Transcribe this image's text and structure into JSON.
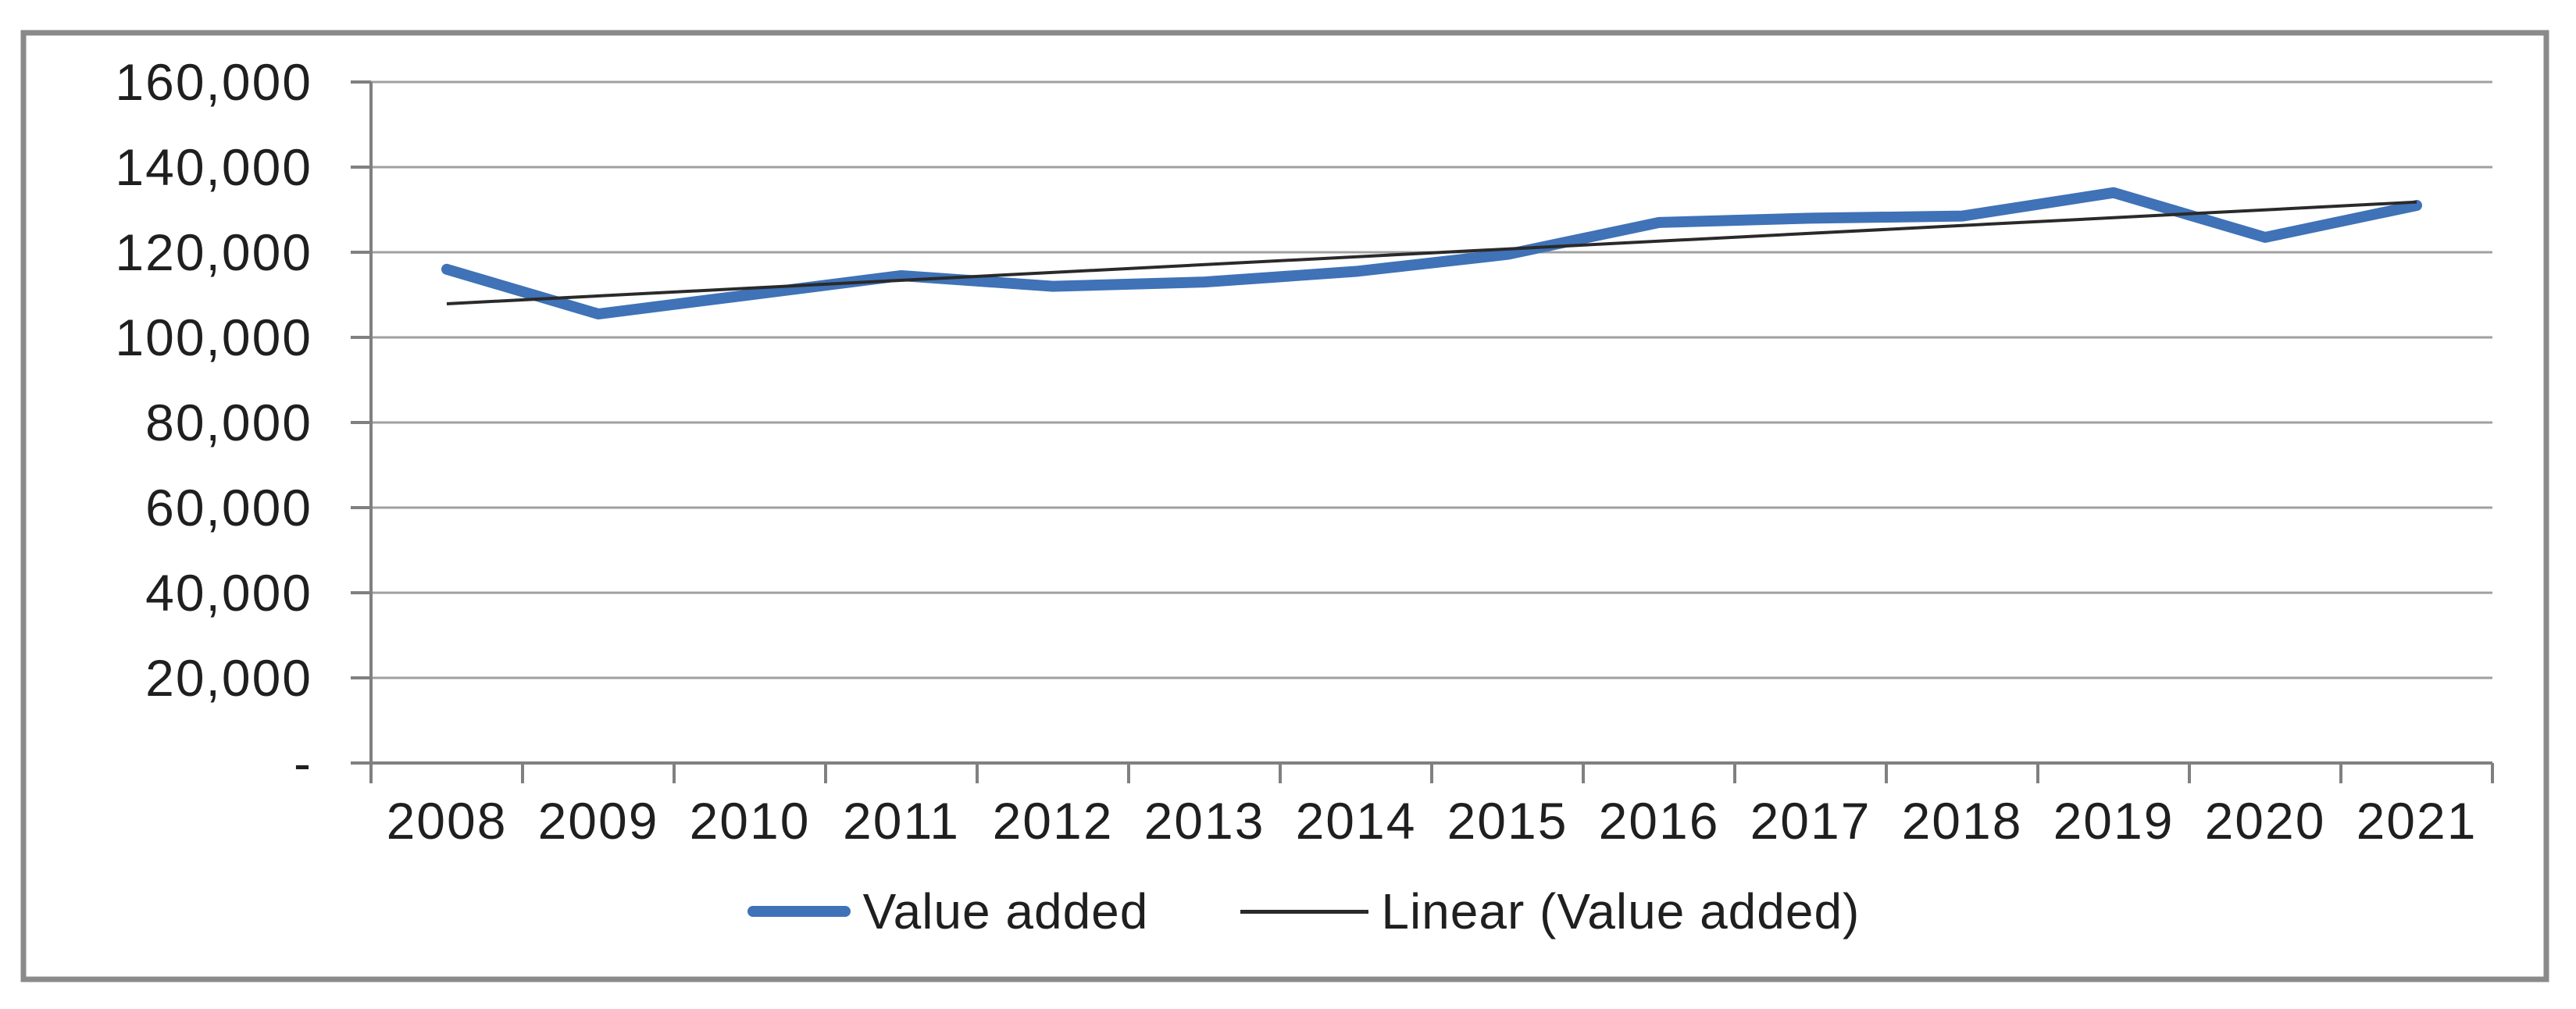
{
  "chart_data": {
    "type": "line",
    "title": "",
    "xlabel": "",
    "ylabel": "",
    "categories": [
      "2008",
      "2009",
      "2010",
      "2011",
      "2012",
      "2013",
      "2014",
      "2015",
      "2016",
      "2017",
      "2018",
      "2019",
      "2020",
      "2021"
    ],
    "series": [
      {
        "name": "Value added",
        "color": "#3f72b7",
        "values": [
          116000,
          105500,
          110000,
          114500,
          112000,
          113000,
          115500,
          119500,
          127000,
          128000,
          128500,
          134000,
          123500,
          131000
        ]
      }
    ],
    "trendline": {
      "name": "Linear (Value added)",
      "color": "#2a2a2a",
      "start_value": 107900,
      "end_value": 131800
    },
    "ylim": [
      0,
      160000
    ],
    "y_tick_interval": 20000,
    "y_tick_labels": [
      "-",
      "20,000",
      "40,000",
      "60,000",
      "80,000",
      "100,000",
      "120,000",
      "140,000",
      "160,000"
    ],
    "grid": true,
    "legend_position": "bottom"
  },
  "legend": {
    "items": [
      {
        "label": "Value added",
        "color": "#3f72b7"
      },
      {
        "label": "Linear (Value added)",
        "color": "#2a2a2a"
      }
    ]
  },
  "colors": {
    "gridline": "#a0a0a0",
    "axis": "#808080",
    "frame": "#8a8a8a",
    "text": "#1f1f1f"
  }
}
